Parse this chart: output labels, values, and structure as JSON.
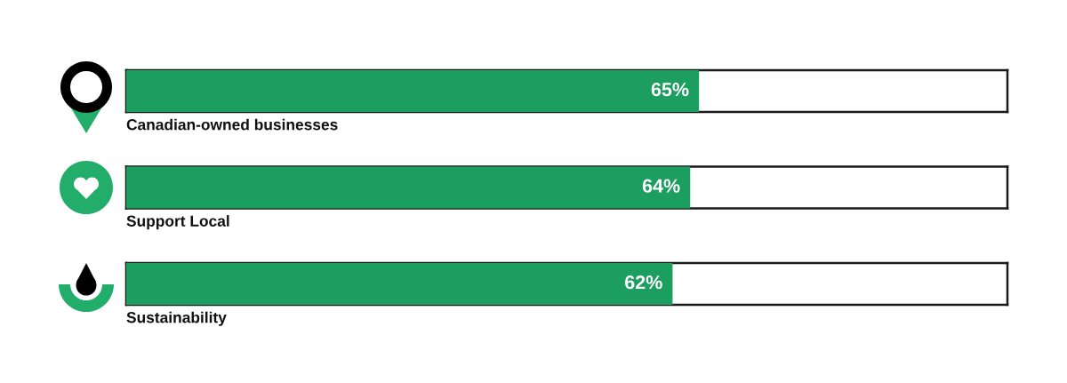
{
  "chart_data": {
    "type": "bar",
    "orientation": "horizontal",
    "categories": [
      "Canadian-owned businesses",
      "Support Local",
      "Sustainability"
    ],
    "values": [
      65,
      64,
      62
    ],
    "value_labels": [
      "65%",
      "64%",
      "62%"
    ],
    "color": "#1b9e5f",
    "xlim": [
      0,
      100
    ]
  }
}
